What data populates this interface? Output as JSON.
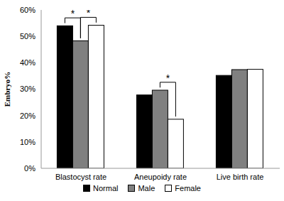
{
  "chart_data": {
    "type": "bar",
    "categories": [
      "Blastocyst rate",
      "Aneupoidy rate",
      "Live birth rate"
    ],
    "series": [
      {
        "name": "Normal",
        "color": "#000000",
        "values": [
          54,
          27.8,
          35.2
        ]
      },
      {
        "name": "Male",
        "color": "#808080",
        "values": [
          48.3,
          29.6,
          37.4
        ]
      },
      {
        "name": "Female",
        "color": "#ffffff",
        "values": [
          54.2,
          18.6,
          37.5
        ]
      }
    ],
    "ylabel": "Embryo%",
    "ylim": [
      0,
      60
    ],
    "yticks": [
      {
        "value": 0,
        "label": "0%"
      },
      {
        "value": 10,
        "label": "10%"
      },
      {
        "value": 20,
        "label": "20%"
      },
      {
        "value": 30,
        "label": "30%"
      },
      {
        "value": 40,
        "label": "40%"
      },
      {
        "value": 50,
        "label": "50%"
      },
      {
        "value": 60,
        "label": "60%"
      }
    ],
    "grid": false,
    "legend": "bottom",
    "annotations": [
      {
        "text": "*",
        "category": "Blastocyst rate",
        "between": [
          "Normal",
          "Male"
        ]
      },
      {
        "text": "*",
        "category": "Blastocyst rate",
        "between": [
          "Male",
          "Female"
        ]
      },
      {
        "text": "*",
        "category": "Aneupoidy rate",
        "between": [
          "Male",
          "Female"
        ]
      }
    ]
  }
}
